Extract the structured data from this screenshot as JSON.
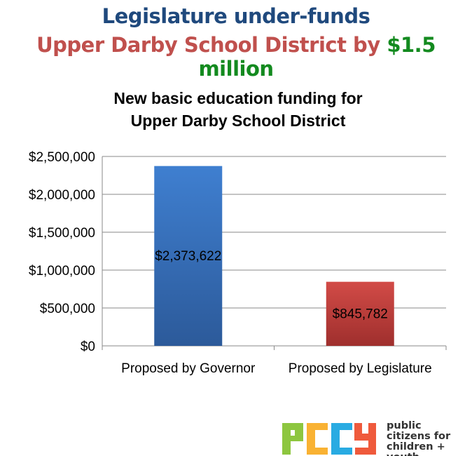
{
  "headline": {
    "line1": "Legislature under-funds",
    "line2_part1": "Upper Darby School District by ",
    "line2_part2": "$1.5 million",
    "colors": {
      "line1": "#1f497d",
      "line2_part1": "#c0504d",
      "line2_part2": "#138a1f"
    }
  },
  "chart_data": {
    "type": "bar",
    "title": "New basic education funding for Upper Darby School District",
    "title_lines": [
      "New basic education funding for",
      "Upper Darby School District"
    ],
    "categories": [
      "Proposed by Governor",
      "Proposed by Legislature"
    ],
    "values": [
      2373622,
      845782
    ],
    "data_labels": [
      "$2,373,622",
      "$845,782"
    ],
    "bar_colors": [
      "#3a6fbf",
      "#c0403d"
    ],
    "ylim": [
      0,
      2500000
    ],
    "yticks": [
      0,
      500000,
      1000000,
      1500000,
      2000000,
      2500000
    ],
    "ytick_labels": [
      "$0",
      "$500,000",
      "$1,000,000",
      "$1,500,000",
      "$2,000,000",
      "$2,500,000"
    ],
    "grid": true,
    "xlabel": "",
    "ylabel": ""
  },
  "logo": {
    "letters": "PCCY",
    "letter_colors": [
      "#8dc63f",
      "#f9b233",
      "#29abe2",
      "#ef5a3c"
    ],
    "text_lines": [
      "public",
      "citizens for",
      "children + youth"
    ]
  }
}
